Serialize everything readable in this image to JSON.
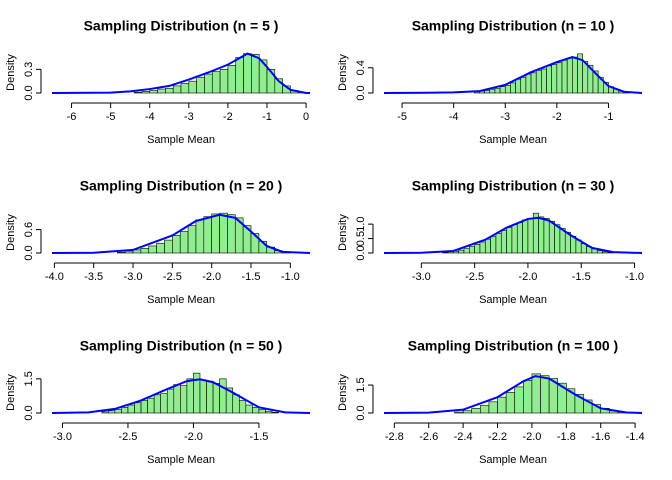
{
  "chart_data": [
    {
      "type": "histogram",
      "title": "Sampling Distribution (n = 5 )",
      "xlabel": "Sample Mean",
      "ylabel": "Density",
      "color": "#90ee90",
      "bins": [
        -4.4,
        -4.2,
        -4.0,
        -3.8,
        -3.6,
        -3.4,
        -3.2,
        -3.0,
        -2.8,
        -2.6,
        -2.4,
        -2.2,
        -2.0,
        -1.8,
        -1.6,
        -1.4,
        -1.2,
        -1.0,
        -0.8,
        -0.6,
        -0.4,
        -0.2,
        0
      ],
      "values": [
        0.01,
        0.02,
        0.03,
        0.05,
        0.06,
        0.09,
        0.12,
        0.15,
        0.2,
        0.24,
        0.27,
        0.3,
        0.35,
        0.45,
        0.5,
        0.49,
        0.42,
        0.3,
        0.18,
        0.09,
        0.03,
        0.01
      ],
      "curve": {
        "color": "#0000ff",
        "x": [
          -6.5,
          -5,
          -4.5,
          -4,
          -3.5,
          -3,
          -2.5,
          -2,
          -1.5,
          -1.2,
          -1,
          -0.7,
          -0.4,
          0,
          0.1
        ],
        "values": [
          0,
          0.005,
          0.02,
          0.05,
          0.09,
          0.17,
          0.26,
          0.36,
          0.5,
          0.44,
          0.33,
          0.15,
          0.04,
          0,
          0
        ]
      },
      "xlim": [
        -6.5,
        0.1
      ],
      "xticks": [
        -6,
        -5,
        -4,
        -3,
        -2,
        -1,
        0
      ],
      "ylim": [
        0,
        0.52
      ],
      "yticks": [
        {
          "value": 0,
          "label": "0.0"
        },
        0.3
      ]
    },
    {
      "type": "histogram",
      "title": "Sampling Distribution (n = 10 )",
      "xlabel": "Sample Mean",
      "ylabel": "Density",
      "color": "#90ee90",
      "bins": [
        -3.6,
        -3.5,
        -3.4,
        -3.3,
        -3.2,
        -3.1,
        -3.0,
        -2.9,
        -2.8,
        -2.7,
        -2.6,
        -2.5,
        -2.4,
        -2.3,
        -2.2,
        -2.1,
        -2.0,
        -1.9,
        -1.8,
        -1.7,
        -1.6,
        -1.5,
        -1.4,
        -1.3,
        -1.2,
        -1.1,
        -1.0,
        -0.9,
        -0.8,
        -0.7,
        -0.6
      ],
      "values": [
        0.02,
        0.03,
        0.04,
        0.06,
        0.07,
        0.1,
        0.12,
        0.16,
        0.22,
        0.25,
        0.3,
        0.32,
        0.36,
        0.38,
        0.43,
        0.45,
        0.48,
        0.52,
        0.55,
        0.57,
        0.62,
        0.5,
        0.44,
        0.35,
        0.25,
        0.17,
        0.1,
        0.06,
        0.03,
        0.01
      ],
      "curve": {
        "color": "#0000ff",
        "x": [
          -5.35,
          -4.5,
          -4,
          -3.5,
          -3,
          -2.5,
          -2,
          -1.7,
          -1.5,
          -1.2,
          -1,
          -0.7,
          -0.35
        ],
        "values": [
          0,
          0.003,
          0.01,
          0.03,
          0.13,
          0.33,
          0.49,
          0.57,
          0.52,
          0.27,
          0.11,
          0.02,
          0
        ]
      },
      "xlim": [
        -5.35,
        -0.35
      ],
      "xticks": [
        -5,
        -4,
        -3,
        -2,
        -1
      ],
      "ylim": [
        0,
        0.65
      ],
      "yticks": [
        {
          "value": 0,
          "label": "0.0"
        },
        0.4
      ]
    },
    {
      "type": "histogram",
      "title": "Sampling Distribution (n = 20 )",
      "xlabel": "Sample Mean",
      "ylabel": "Density",
      "color": "#90ee90",
      "bins": [
        -3.2,
        -3.1,
        -3.0,
        -2.9,
        -2.8,
        -2.7,
        -2.6,
        -2.5,
        -2.4,
        -2.3,
        -2.2,
        -2.1,
        -2.0,
        -1.9,
        -1.8,
        -1.7,
        -1.6,
        -1.5,
        -1.4,
        -1.3,
        -1.2,
        -1.1,
        -1.0
      ],
      "values": [
        0.02,
        0.05,
        0.08,
        0.12,
        0.18,
        0.25,
        0.33,
        0.45,
        0.55,
        0.7,
        0.85,
        0.93,
        1.0,
        1.02,
        0.98,
        0.9,
        0.7,
        0.5,
        0.3,
        0.15,
        0.06,
        0.02
      ],
      "curve": {
        "color": "#0000ff",
        "x": [
          -4.03,
          -3.5,
          -3,
          -2.5,
          -2.2,
          -1.9,
          -1.7,
          -1.5,
          -1.3,
          -1.1,
          -0.75
        ],
        "values": [
          0,
          0.005,
          0.08,
          0.45,
          0.82,
          0.98,
          0.9,
          0.55,
          0.18,
          0.03,
          0
        ]
      },
      "xlim": [
        -4.03,
        -0.75
      ],
      "xticks": [
        {
          "value": -4,
          "label": "-4.0"
        },
        -3.5,
        {
          "value": -3,
          "label": "-3.0"
        },
        -2.5,
        {
          "value": -2,
          "label": "-2.0"
        },
        -1.5,
        {
          "value": -1,
          "label": "-1.0"
        }
      ],
      "ylim": [
        0,
        1.05
      ],
      "yticks": [
        {
          "value": 0,
          "label": "0.0"
        },
        0.6
      ]
    },
    {
      "type": "histogram",
      "title": "Sampling Distribution (n = 30 )",
      "xlabel": "Sample Mean",
      "ylabel": "Density",
      "color": "#90ee90",
      "bins": [
        -2.8,
        -2.75,
        -2.7,
        -2.65,
        -2.6,
        -2.55,
        -2.5,
        -2.45,
        -2.4,
        -2.35,
        -2.3,
        -2.25,
        -2.2,
        -2.15,
        -2.1,
        -2.05,
        -2.0,
        -1.95,
        -1.9,
        -1.85,
        -1.8,
        -1.75,
        -1.7,
        -1.65,
        -1.6,
        -1.55,
        -1.5,
        -1.45,
        -1.4,
        -1.35,
        -1.3,
        -1.25,
        -1.2
      ],
      "values": [
        0.02,
        0.04,
        0.06,
        0.1,
        0.15,
        0.22,
        0.3,
        0.38,
        0.48,
        0.57,
        0.68,
        0.78,
        0.88,
        0.98,
        1.05,
        1.15,
        1.2,
        1.38,
        1.25,
        1.2,
        1.1,
        0.98,
        0.85,
        0.72,
        0.58,
        0.45,
        0.32,
        0.22,
        0.14,
        0.08,
        0.04,
        0.02
      ],
      "curve": {
        "color": "#0000ff",
        "x": [
          -3.35,
          -3,
          -2.7,
          -2.4,
          -2.2,
          -2,
          -1.9,
          -1.8,
          -1.6,
          -1.4,
          -1.2,
          -0.93
        ],
        "values": [
          0,
          0.01,
          0.07,
          0.46,
          0.88,
          1.18,
          1.22,
          1.12,
          0.62,
          0.18,
          0.03,
          0
        ]
      },
      "xlim": [
        -3.35,
        -0.93
      ],
      "xticks": [
        {
          "value": -3,
          "label": "-3.0"
        },
        -2.5,
        {
          "value": -2,
          "label": "-2.0"
        },
        -1.5,
        {
          "value": -1,
          "label": "-1.0"
        }
      ],
      "ylim": [
        0,
        1.42
      ],
      "yticks": [
        {
          "value": 0,
          "label": "0.0"
        },
        0.5,
        {
          "value": 1,
          "label": "1.0"
        }
      ]
    },
    {
      "type": "histogram",
      "title": "Sampling Distribution (n = 50 )",
      "xlabel": "Sample Mean",
      "ylabel": "Density",
      "color": "#90ee90",
      "bins": [
        -2.7,
        -2.65,
        -2.6,
        -2.55,
        -2.5,
        -2.45,
        -2.4,
        -2.35,
        -2.3,
        -2.25,
        -2.2,
        -2.15,
        -2.1,
        -2.05,
        -2.0,
        -1.95,
        -1.9,
        -1.85,
        -1.8,
        -1.75,
        -1.7,
        -1.65,
        -1.6,
        -1.55,
        -1.5,
        -1.45,
        -1.4,
        -1.35
      ],
      "values": [
        0.05,
        0.1,
        0.15,
        0.25,
        0.35,
        0.45,
        0.55,
        0.65,
        0.8,
        0.85,
        1.05,
        1.25,
        1.2,
        1.5,
        1.75,
        1.45,
        1.4,
        1.3,
        1.5,
        1.1,
        0.8,
        0.55,
        0.35,
        0.25,
        0.15,
        0.08,
        0.03
      ],
      "curve": {
        "color": "#0000ff",
        "x": [
          -3.08,
          -2.8,
          -2.6,
          -2.4,
          -2.2,
          -2.05,
          -1.95,
          -1.85,
          -1.7,
          -1.5,
          -1.3,
          -1.11
        ],
        "values": [
          0,
          0.03,
          0.18,
          0.55,
          1.05,
          1.4,
          1.48,
          1.35,
          0.9,
          0.25,
          0.03,
          0
        ]
      },
      "xlim": [
        -3.08,
        -1.11
      ],
      "xticks": [
        {
          "value": -3,
          "label": "-3.0"
        },
        -2.5,
        {
          "value": -2,
          "label": "-2.0"
        },
        -1.5
      ],
      "ylim": [
        0,
        1.8
      ],
      "yticks": [
        {
          "value": 0,
          "label": "0.0"
        },
        1.5
      ]
    },
    {
      "type": "histogram",
      "title": "Sampling Distribution (n = 100 )",
      "xlabel": "Sample Mean",
      "ylabel": "Density",
      "color": "#90ee90",
      "bins": [
        -2.45,
        -2.4,
        -2.35,
        -2.3,
        -2.25,
        -2.2,
        -2.15,
        -2.1,
        -2.05,
        -2.0,
        -1.95,
        -1.9,
        -1.85,
        -1.8,
        -1.75,
        -1.7,
        -1.65,
        -1.6,
        -1.55,
        -1.5,
        -1.45
      ],
      "values": [
        0.05,
        0.12,
        0.25,
        0.4,
        0.6,
        0.85,
        1.1,
        1.4,
        1.75,
        2.1,
        2.0,
        1.85,
        1.6,
        1.3,
        1.0,
        0.7,
        0.45,
        0.25,
        0.12,
        0.05
      ],
      "curve": {
        "color": "#0000ff",
        "x": [
          -2.86,
          -2.6,
          -2.4,
          -2.2,
          -2.05,
          -1.98,
          -1.9,
          -1.75,
          -1.6,
          -1.45,
          -1.36
        ],
        "values": [
          0,
          0.02,
          0.18,
          0.85,
          1.7,
          1.98,
          1.85,
          1.0,
          0.25,
          0.03,
          0
        ]
      },
      "xlim": [
        -2.86,
        -1.36
      ],
      "xticks": [
        -2.8,
        -2.6,
        -2.4,
        -2.2,
        {
          "value": -2,
          "label": "-2.0"
        },
        -1.8,
        -1.6,
        -1.4
      ],
      "ylim": [
        0,
        2.2
      ],
      "yticks": [
        {
          "value": 0,
          "label": "0.0"
        },
        1.5
      ]
    }
  ]
}
